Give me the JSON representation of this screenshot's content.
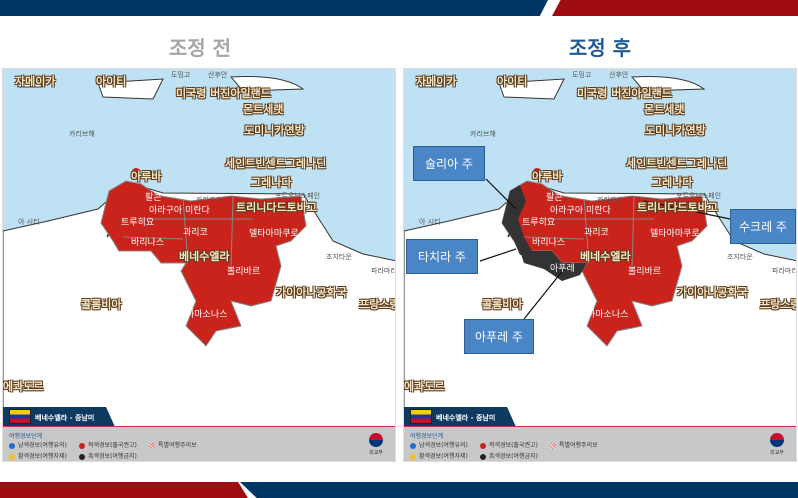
{
  "colors": {
    "navy": "#003764",
    "red": "#9e0c12",
    "title_before": "#a6a6a6",
    "title_after": "#1f5a96",
    "advisory_red": "#c9231b",
    "advisory_black": "#333333",
    "sea": "#bfe1f4"
  },
  "titles": {
    "before": "조정 전",
    "after": "조정 후"
  },
  "map": {
    "labels": [
      "자메이카",
      "아이티",
      "도밍고",
      "산후안",
      "미국령 버진아일랜드",
      "몬트세랫",
      "도미니카연방",
      "카리브해",
      "세인트빈센트그레나딘",
      "그레나다",
      "아루바",
      "팔콘",
      "카라카스",
      "포트오브스페인",
      "트리니다드토바고",
      "아라구아 미란다",
      "트루히요",
      "과리코",
      "델타아마쿠로",
      "바리나스",
      "아푸레",
      "베네수엘라",
      "조지타운",
      "볼리바르",
      "파라마리",
      "가이아나공화국",
      "콜롬비아",
      "프랑스령",
      "아마소나스",
      "에콰도르",
      "아 시티"
    ],
    "tab_label": "베네수엘라 - 중남미",
    "legend": {
      "title": "여행경보단계",
      "items": [
        {
          "label": "남색경보(여행유의)",
          "color": "#1a6fd0"
        },
        {
          "label": "적색경보(출국권고)",
          "color": "#c9231b"
        },
        {
          "label": "특별여행주의보",
          "color": "#e88"
        },
        {
          "label": "황색경보(여행자제)",
          "color": "#f3c12b"
        },
        {
          "label": "흑색경보(여행금지)",
          "color": "#222222"
        }
      ]
    },
    "logo_text": "외교부"
  },
  "callouts": [
    "술리아 주",
    "수크레 주",
    "타치라 주",
    "아푸레 주"
  ]
}
